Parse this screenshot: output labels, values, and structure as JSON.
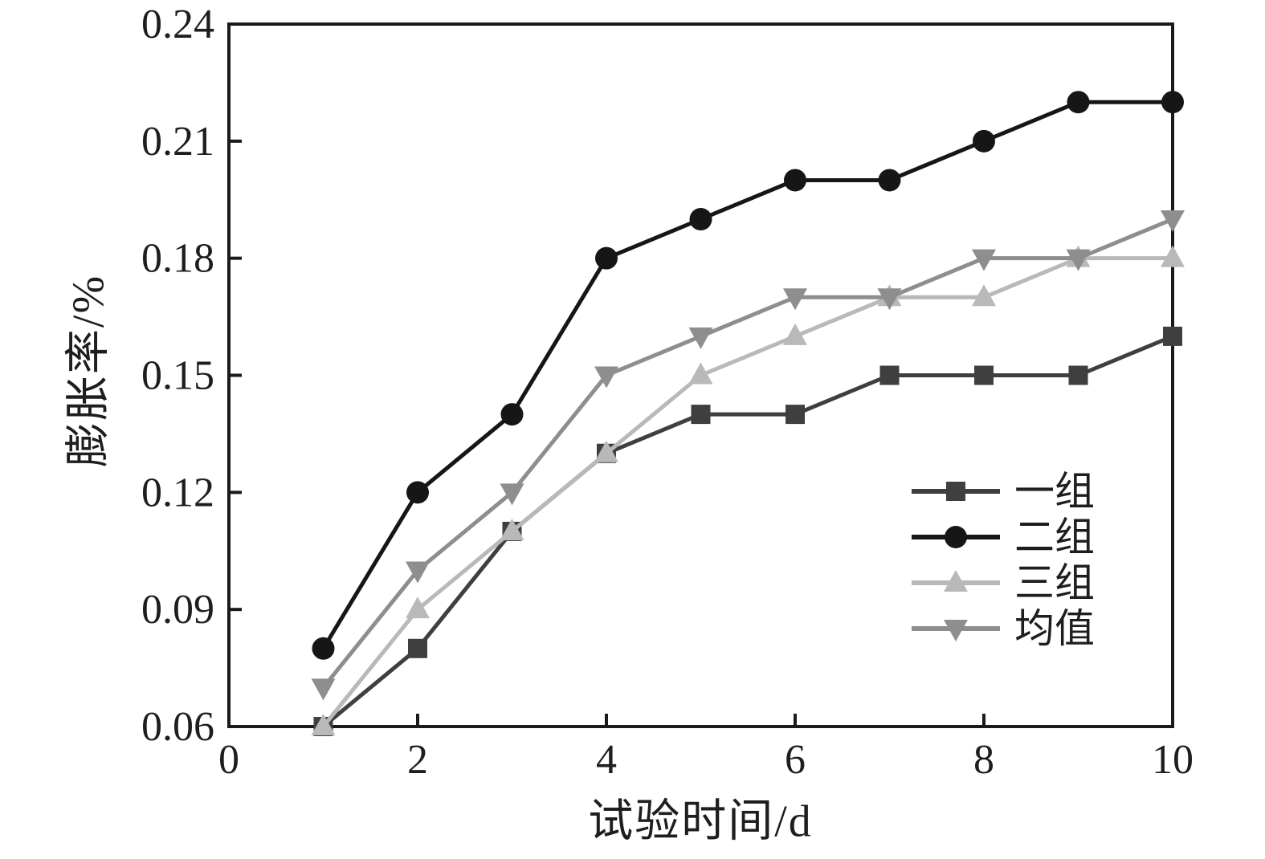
{
  "chart_data": {
    "type": "line",
    "title": "",
    "xlabel": "试验时间/d",
    "ylabel": "膨胀率/%",
    "xlim": [
      0,
      10
    ],
    "ylim": [
      0.06,
      0.24
    ],
    "x_ticks": [
      0,
      2,
      4,
      6,
      8,
      10
    ],
    "y_ticks": [
      0.06,
      0.09,
      0.12,
      0.15,
      0.18,
      0.21,
      0.24
    ],
    "grid": false,
    "legend_position": "inside-bottom-right",
    "x": [
      1,
      2,
      3,
      4,
      5,
      6,
      7,
      8,
      9,
      10
    ],
    "series": [
      {
        "name": "一组",
        "marker": "square",
        "color": "#3f3f3f",
        "values": [
          0.06,
          0.08,
          0.11,
          0.13,
          0.14,
          0.14,
          0.15,
          0.15,
          0.15,
          0.16
        ]
      },
      {
        "name": "二组",
        "marker": "circle",
        "color": "#161616",
        "values": [
          0.08,
          0.12,
          0.14,
          0.18,
          0.19,
          0.2,
          0.2,
          0.21,
          0.22,
          0.22
        ]
      },
      {
        "name": "三组",
        "marker": "triangle-up",
        "color": "#b9b9b9",
        "values": [
          0.06,
          0.09,
          0.11,
          0.13,
          0.15,
          0.16,
          0.17,
          0.17,
          0.18,
          0.18
        ]
      },
      {
        "name": "均值",
        "marker": "triangle-down",
        "color": "#8e8e8e",
        "values": [
          0.07,
          0.1,
          0.12,
          0.15,
          0.16,
          0.17,
          0.17,
          0.18,
          0.18,
          0.19
        ]
      }
    ]
  }
}
